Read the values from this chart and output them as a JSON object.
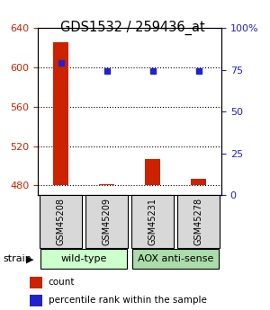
{
  "title": "GDS1532 / 259436_at",
  "samples": [
    "GSM45208",
    "GSM45209",
    "GSM45231",
    "GSM45278"
  ],
  "counts": [
    625,
    481,
    507,
    487
  ],
  "percentiles": [
    79,
    74,
    74,
    74
  ],
  "group_colors": [
    "#ccffcc",
    "#aaddaa"
  ],
  "ylim_left": [
    470,
    640
  ],
  "yticks_left": [
    480,
    520,
    560,
    600,
    640
  ],
  "ylim_right": [
    0,
    100
  ],
  "yticks_right": [
    0,
    25,
    50,
    75,
    100
  ],
  "bar_color": "#cc2200",
  "dot_color": "#2222cc",
  "bg_color": "#d8d8d8",
  "label_count": "count",
  "label_percentile": "percentile rank within the sample",
  "strain_label": "strain",
  "baseline": 480
}
